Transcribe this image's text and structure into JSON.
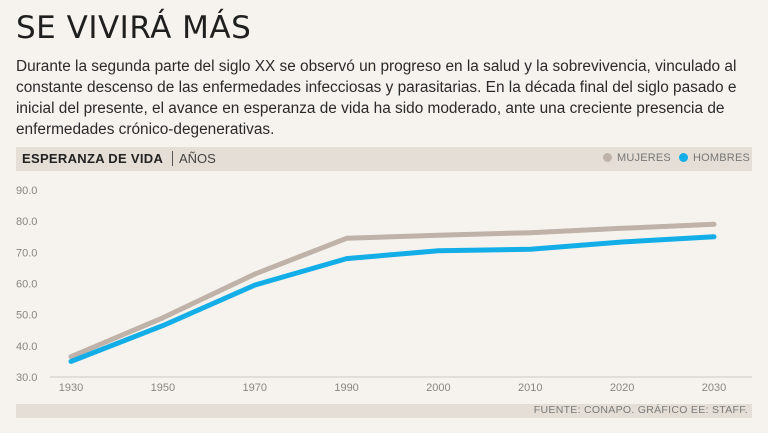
{
  "title": "SE VIVIRÁ MÁS",
  "intro": "Durante la segunda parte del siglo XX se observó un progreso en la salud y la sobrevivencia, vinculado al constante descenso de las enfermedades infecciosas y parasitarias. En la década final del siglo pasado e inicial del presente, el avance en esperanza de vida ha sido moderado, ante una creciente presencia de enfermedades crónico-degenerativas.",
  "chart_header": {
    "title": "ESPERANZA DE VIDA",
    "unit": "AÑOS"
  },
  "source": "FUENTE: CONAPO. GRÁFICO EE: STAFF.",
  "chart_data": {
    "type": "line",
    "title": "ESPERANZA DE VIDA",
    "ylabel": "AÑOS",
    "xlabel": "",
    "x": [
      1930,
      1950,
      1970,
      1990,
      2000,
      2010,
      2020,
      2030
    ],
    "x_ticks": [
      "1930",
      "1950",
      "1970",
      "1990",
      "2000",
      "2010",
      "2020",
      "2030"
    ],
    "y_ticks": [
      "30.0",
      "40.0",
      "50.0",
      "60.0",
      "70.0",
      "80.0",
      "90.0"
    ],
    "ylim": [
      30,
      90
    ],
    "grid": false,
    "legend": "top-right",
    "series": [
      {
        "name": "MUJERES",
        "color": "#bfb2a8",
        "values": [
          36.5,
          49.0,
          63.0,
          74.5,
          75.5,
          76.3,
          77.7,
          79.0
        ]
      },
      {
        "name": "HOMBRES",
        "color": "#13aee8",
        "values": [
          35.0,
          46.5,
          59.5,
          68.0,
          70.5,
          71.0,
          73.3,
          75.0
        ]
      }
    ]
  }
}
